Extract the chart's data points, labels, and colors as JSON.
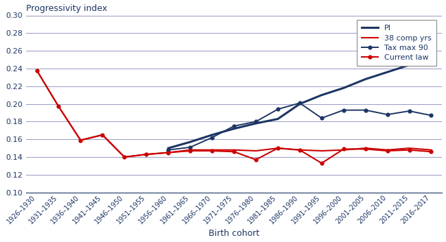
{
  "x_labels": [
    "1926–1930",
    "1931–1935",
    "1936–1940",
    "1941–1945",
    "1946–1950",
    "1951–1955",
    "1956–1960",
    "1961–1965",
    "1966–1970",
    "1971–1975",
    "1976–1980",
    "1981–1985",
    "1986–1990",
    "1991–1995",
    "1996–2000",
    "2001–2005",
    "2006–2010",
    "2011–2015",
    "2016–2017"
  ],
  "PI": [
    null,
    null,
    null,
    null,
    null,
    null,
    0.15,
    0.157,
    0.165,
    0.172,
    0.178,
    0.183,
    0.2,
    0.21,
    0.218,
    0.228,
    0.236,
    0.244,
    0.249
  ],
  "comp38": [
    0.238,
    0.197,
    0.159,
    0.165,
    0.14,
    0.143,
    0.145,
    0.148,
    0.148,
    0.148,
    0.147,
    0.15,
    0.148,
    0.147,
    0.148,
    0.15,
    0.148,
    0.15,
    0.148
  ],
  "taxmax90": [
    null,
    null,
    null,
    null,
    null,
    null,
    0.148,
    0.151,
    0.162,
    0.175,
    0.18,
    0.194,
    0.201,
    0.184,
    0.193,
    0.193,
    0.188,
    0.192,
    0.187
  ],
  "currentlaw": [
    0.238,
    0.197,
    0.159,
    0.165,
    0.14,
    0.143,
    0.145,
    0.147,
    0.147,
    0.146,
    0.137,
    0.15,
    0.148,
    0.133,
    0.149,
    0.149,
    0.147,
    0.148,
    0.146
  ],
  "navy": "#1C3564",
  "red": "#CC0000",
  "title": "Progressivity index",
  "xlabel": "Birth cohort",
  "ylim": [
    0.1,
    0.3
  ],
  "yticks": [
    0.1,
    0.12,
    0.14,
    0.16,
    0.18,
    0.2,
    0.22,
    0.24,
    0.26,
    0.28,
    0.3
  ],
  "grid_color": "#8888BB",
  "axis_color": "#1C3564",
  "tick_color": "#1C3564"
}
